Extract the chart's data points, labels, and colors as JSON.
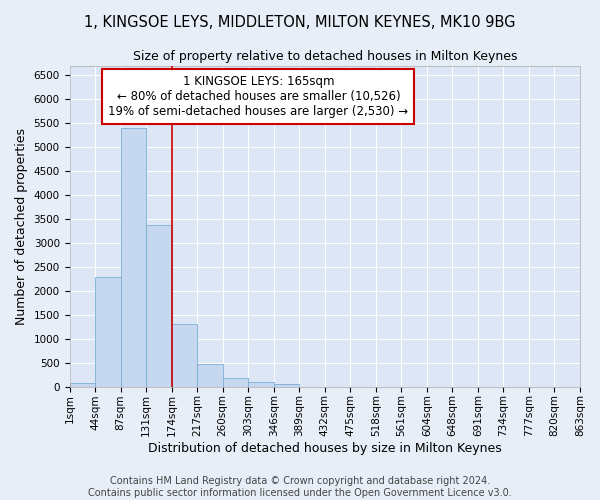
{
  "title": "1, KINGSOE LEYS, MIDDLETON, MILTON KEYNES, MK10 9BG",
  "subtitle": "Size of property relative to detached houses in Milton Keynes",
  "xlabel": "Distribution of detached houses by size in Milton Keynes",
  "ylabel": "Number of detached properties",
  "footer_line1": "Contains HM Land Registry data © Crown copyright and database right 2024.",
  "footer_line2": "Contains public sector information licensed under the Open Government Licence v3.0.",
  "bin_labels": [
    "1sqm",
    "44sqm",
    "87sqm",
    "131sqm",
    "174sqm",
    "217sqm",
    "260sqm",
    "303sqm",
    "346sqm",
    "389sqm",
    "432sqm",
    "475sqm",
    "518sqm",
    "561sqm",
    "604sqm",
    "648sqm",
    "691sqm",
    "734sqm",
    "777sqm",
    "820sqm",
    "863sqm"
  ],
  "bar_values": [
    70,
    2280,
    5390,
    3380,
    1310,
    480,
    190,
    100,
    55,
    0,
    0,
    0,
    0,
    0,
    0,
    0,
    0,
    0,
    0,
    0
  ],
  "bar_color": "#c5d8f0",
  "bar_edge_color": "#7badd4",
  "ylim": [
    0,
    6700
  ],
  "yticks": [
    0,
    500,
    1000,
    1500,
    2000,
    2500,
    3000,
    3500,
    4000,
    4500,
    5000,
    5500,
    6000,
    6500
  ],
  "property_label": "1 KINGSOE LEYS: 165sqm",
  "annotation_line1": "← 80% of detached houses are smaller (10,526)",
  "annotation_line2": "19% of semi-detached houses are larger (2,530) →",
  "vline_color": "#cc0000",
  "vline_x": 4.0,
  "annotation_box_color": "#ffffff",
  "annotation_box_edge": "#cc0000",
  "bg_color": "#e8eef8",
  "plot_bg_color": "#dce6f5",
  "grid_color": "#ffffff",
  "title_fontsize": 10.5,
  "subtitle_fontsize": 9,
  "axis_label_fontsize": 9,
  "tick_fontsize": 7.5,
  "annotation_fontsize": 8.5,
  "footer_fontsize": 7
}
